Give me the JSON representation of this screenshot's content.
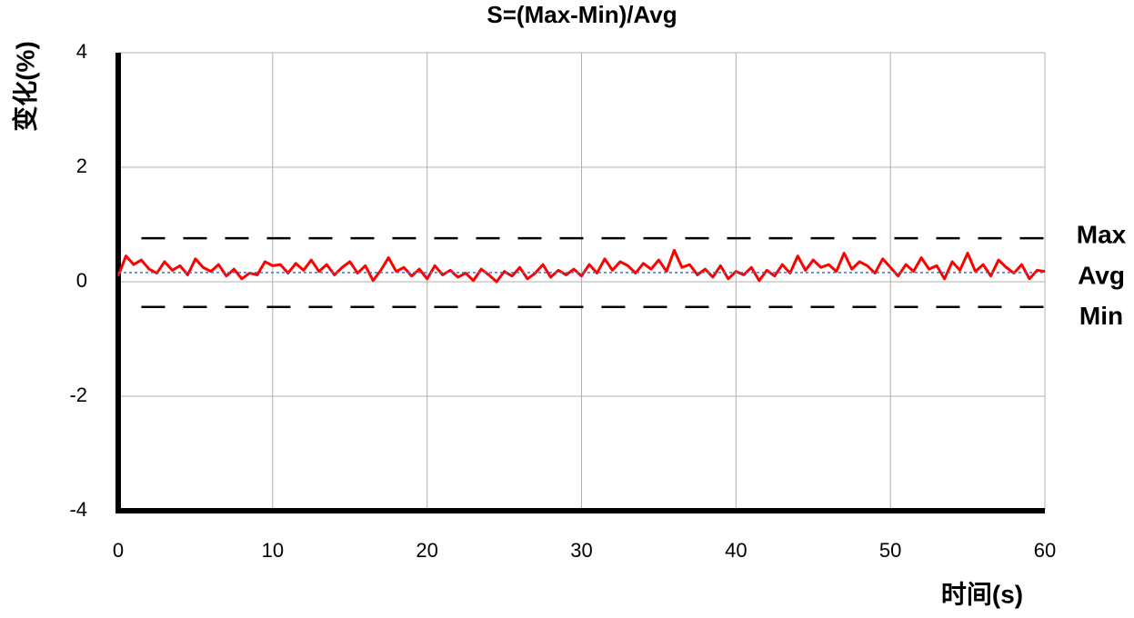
{
  "chart_data": {
    "type": "line",
    "title": "S=(Max-Min)/Avg",
    "x_label": "时间(s)",
    "y_label": "变化(%)",
    "xlim": [
      0,
      60
    ],
    "ylim": [
      -4,
      4
    ],
    "xticks": [
      0,
      10,
      20,
      30,
      40,
      50,
      60
    ],
    "yticks": [
      -4,
      -2,
      0,
      2,
      4
    ],
    "grid": true,
    "x": [
      0,
      0.5,
      1,
      1.5,
      2,
      2.5,
      3,
      3.5,
      4,
      4.5,
      5,
      5.5,
      6,
      6.5,
      7,
      7.5,
      8,
      8.5,
      9,
      9.5,
      10,
      10.5,
      11,
      11.5,
      12,
      12.5,
      13,
      13.5,
      14,
      14.5,
      15,
      15.5,
      16,
      16.5,
      17,
      17.5,
      18,
      18.5,
      19,
      19.5,
      20,
      20.5,
      21,
      21.5,
      22,
      22.5,
      23,
      23.5,
      24,
      24.5,
      25,
      25.5,
      26,
      26.5,
      27,
      27.5,
      28,
      28.5,
      29,
      29.5,
      30,
      30.5,
      31,
      31.5,
      32,
      32.5,
      33,
      33.5,
      34,
      34.5,
      35,
      35.5,
      36,
      36.5,
      37,
      37.5,
      38,
      38.5,
      39,
      39.5,
      40,
      40.5,
      41,
      41.5,
      42,
      42.5,
      43,
      43.5,
      44,
      44.5,
      45,
      45.5,
      46,
      46.5,
      47,
      47.5,
      48,
      48.5,
      49,
      49.5,
      50,
      50.5,
      51,
      51.5,
      52,
      52.5,
      53,
      53.5,
      54,
      54.5,
      55,
      55.5,
      56,
      56.5,
      57,
      57.5,
      58,
      58.5,
      59,
      59.5,
      60
    ],
    "series": [
      {
        "color": "#ff0000",
        "linestyle": "solid",
        "values": [
          0.1,
          0.45,
          0.3,
          0.38,
          0.22,
          0.15,
          0.35,
          0.2,
          0.28,
          0.12,
          0.4,
          0.25,
          0.18,
          0.3,
          0.1,
          0.22,
          0.05,
          0.15,
          0.12,
          0.35,
          0.28,
          0.3,
          0.15,
          0.32,
          0.2,
          0.38,
          0.18,
          0.3,
          0.12,
          0.25,
          0.35,
          0.15,
          0.28,
          0.02,
          0.2,
          0.42,
          0.18,
          0.25,
          0.1,
          0.22,
          0.05,
          0.28,
          0.12,
          0.2,
          0.08,
          0.15,
          0.02,
          0.22,
          0.12,
          0.0,
          0.18,
          0.1,
          0.25,
          0.05,
          0.15,
          0.3,
          0.08,
          0.2,
          0.12,
          0.22,
          0.1,
          0.3,
          0.15,
          0.4,
          0.2,
          0.35,
          0.28,
          0.15,
          0.32,
          0.22,
          0.38,
          0.18,
          0.55,
          0.25,
          0.3,
          0.12,
          0.22,
          0.08,
          0.28,
          0.05,
          0.18,
          0.12,
          0.25,
          0.02,
          0.2,
          0.1,
          0.3,
          0.15,
          0.45,
          0.2,
          0.38,
          0.25,
          0.3,
          0.18,
          0.5,
          0.22,
          0.35,
          0.28,
          0.15,
          0.4,
          0.25,
          0.1,
          0.3,
          0.18,
          0.42,
          0.22,
          0.28,
          0.05,
          0.35,
          0.2,
          0.5,
          0.18,
          0.3,
          0.1,
          0.38,
          0.25,
          0.15,
          0.3,
          0.05,
          0.2,
          0.18
        ]
      },
      {
        "name": "Max",
        "color": "#000000",
        "linestyle": "dashed",
        "x": [
          1.5,
          60
        ],
        "values": [
          0.76,
          0.76
        ]
      },
      {
        "name": "Avg",
        "color": "#4472c4",
        "linestyle": "dotted",
        "x": [
          0,
          60
        ],
        "values": [
          0.16,
          0.16
        ]
      },
      {
        "name": "Min",
        "color": "#000000",
        "linestyle": "dashed",
        "x": [
          1.5,
          60
        ],
        "values": [
          -0.44,
          -0.44
        ]
      }
    ]
  }
}
